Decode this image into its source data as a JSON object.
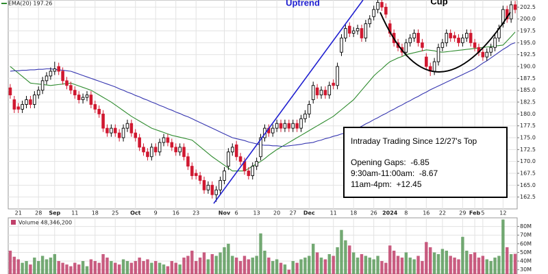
{
  "chart_data": [
    {
      "type": "candlestick",
      "categories": [
        null,
        null,
        "21",
        null,
        null,
        null,
        null,
        "28",
        null,
        null,
        null,
        "Sep",
        null,
        null,
        null,
        null,
        "11",
        null,
        null,
        null,
        null,
        "18",
        null,
        null,
        null,
        null,
        "25",
        null,
        null,
        null,
        null,
        "Oct",
        null,
        null,
        null,
        null,
        "9",
        null,
        null,
        null,
        null,
        "16",
        null,
        null,
        null,
        null,
        "23",
        null,
        null,
        null,
        null,
        null,
        null,
        "Nov",
        null,
        null,
        "6",
        null,
        null,
        null,
        null,
        "13",
        null,
        null,
        null,
        null,
        "20",
        null,
        null,
        null,
        "27",
        null,
        null,
        null,
        "Dec",
        null,
        null,
        null,
        null,
        null,
        "11",
        null,
        null,
        null,
        null,
        "18",
        null,
        null,
        null,
        null,
        "26",
        null,
        null,
        null,
        "2024",
        null,
        null,
        null,
        "8",
        null,
        null,
        null,
        null,
        "16",
        null,
        null,
        null,
        "22",
        null,
        null,
        null,
        null,
        "29",
        null,
        null,
        "Feb",
        null,
        "5",
        null,
        null,
        null,
        null,
        "12",
        null,
        null,
        null
      ],
      "open": [
        185.5,
        183,
        181.5,
        181,
        182,
        183,
        182,
        184,
        185,
        187,
        188,
        189,
        190,
        189,
        187,
        186,
        185,
        184,
        183,
        183.5,
        184,
        182,
        181,
        180,
        177,
        176,
        177,
        176,
        175,
        177,
        178,
        176,
        175,
        173,
        172,
        171,
        173,
        172,
        174,
        175,
        174,
        173,
        172,
        173,
        171,
        169,
        167.5,
        167,
        166,
        164,
        165,
        163,
        164,
        166,
        169,
        172,
        173.5,
        171,
        170,
        168,
        167,
        169,
        171,
        175,
        177,
        176,
        177,
        178,
        177,
        178,
        177,
        178,
        177,
        179,
        180,
        183,
        185.5,
        184,
        185,
        184,
        186.5,
        186,
        193,
        196,
        198.5,
        197,
        197.5,
        198,
        196,
        199,
        200.5,
        202,
        203.5,
        202.5,
        199,
        197,
        195,
        194,
        193,
        195,
        196,
        197,
        195,
        192,
        190,
        189,
        191,
        194,
        195,
        197,
        196.5,
        196,
        195,
        196,
        197,
        195,
        194,
        193,
        192,
        193,
        194,
        196,
        199,
        202,
        200,
        203
      ],
      "high": [
        186.3,
        183.8,
        182.3,
        182.8,
        183.8,
        183.8,
        184.8,
        185.8,
        187.8,
        188.8,
        189.8,
        191,
        190.8,
        189.8,
        187.8,
        186.8,
        185.8,
        184.8,
        184.3,
        184.8,
        184.8,
        182.8,
        181.8,
        180.8,
        177.8,
        177.8,
        177.8,
        176.8,
        177.8,
        178.8,
        178.8,
        176.8,
        175.8,
        173.8,
        172.8,
        173.8,
        173.8,
        174.8,
        175.8,
        175.8,
        174.8,
        173.8,
        173.8,
        173.8,
        171.8,
        169.8,
        168.3,
        167.8,
        166.8,
        165.8,
        165.8,
        164.8,
        166.8,
        168.8,
        172.8,
        173.8,
        174.3,
        171.8,
        170.8,
        168.8,
        169.8,
        170.8,
        175.8,
        177.8,
        177.8,
        177.8,
        178.8,
        178.8,
        178.8,
        178.8,
        178.8,
        178.8,
        179.8,
        180.8,
        182.8,
        186.8,
        186.3,
        185.8,
        185.8,
        186.8,
        187.3,
        190.8,
        196.8,
        198.8,
        199.3,
        198.3,
        198.8,
        198.8,
        199.8,
        200.8,
        202.8,
        204.3,
        204.3,
        203.3,
        199.8,
        197.8,
        195.8,
        194.8,
        195.8,
        196.8,
        197.8,
        197.8,
        195.8,
        192.8,
        190.8,
        191.8,
        194.8,
        195.8,
        197.8,
        197.8,
        197.3,
        196.8,
        196.8,
        197.8,
        197.8,
        195.8,
        194.8,
        193.8,
        193.8,
        194.8,
        196.8,
        198.8,
        202.8,
        202.8,
        203.8,
        203.8
      ],
      "low": [
        183.2,
        180.2,
        180.2,
        180.2,
        181.2,
        181.2,
        181.2,
        183.2,
        184.2,
        186.2,
        187.2,
        188.2,
        188.2,
        186.2,
        185.2,
        184.2,
        183.2,
        182.2,
        182.2,
        182.7,
        181.2,
        180.2,
        179.2,
        176.2,
        175.2,
        175.2,
        175.2,
        174.2,
        174.2,
        176.2,
        175.2,
        174.2,
        172.2,
        171.2,
        170.2,
        170.2,
        171.2,
        171.2,
        173.2,
        173.2,
        172.2,
        171.2,
        171.2,
        170.2,
        168.2,
        166.2,
        166.2,
        165.2,
        163.2,
        163.2,
        162.2,
        161.5,
        163.2,
        165.2,
        168.2,
        171.2,
        170.2,
        169.2,
        167.2,
        166.2,
        166.2,
        168.2,
        170.2,
        174.2,
        175.2,
        175.2,
        176.2,
        176.2,
        176.2,
        176.2,
        176.2,
        176.2,
        176.2,
        178.2,
        179.2,
        182.2,
        183.2,
        183.2,
        183.2,
        183.2,
        185.2,
        185.2,
        192.2,
        195.2,
        196.2,
        196.2,
        196.7,
        195.2,
        195.2,
        198.2,
        199.7,
        201.2,
        201.7,
        200.2,
        196.2,
        194.2,
        193.2,
        192.2,
        192.2,
        194.2,
        195.2,
        194.2,
        193.2,
        189.2,
        188,
        188.2,
        190.2,
        193.2,
        194.2,
        195.2,
        195.2,
        194.2,
        194.2,
        195.2,
        194.2,
        193.2,
        192.2,
        191.2,
        191.2,
        192.2,
        193.2,
        195.2,
        198.2,
        199.2,
        199.2,
        201.2
      ],
      "close": [
        184,
        181,
        181,
        182,
        183,
        182,
        184,
        185,
        187,
        188,
        189,
        189.5,
        189,
        187,
        186,
        185,
        184,
        183,
        183.5,
        184,
        182,
        181,
        180,
        177,
        176,
        177,
        176,
        175,
        177,
        178,
        176,
        175,
        173,
        172,
        171,
        173,
        172,
        174,
        175,
        174,
        173,
        172,
        173,
        171,
        169,
        167,
        167,
        166,
        164,
        165,
        163,
        164,
        166,
        168,
        172,
        173,
        171,
        170,
        168,
        167,
        169,
        170,
        175,
        177,
        176,
        177,
        178,
        177,
        178,
        177,
        178,
        177,
        179,
        180,
        182,
        186,
        184,
        185,
        184,
        186,
        186,
        190,
        196,
        198,
        197,
        197.5,
        198,
        196,
        199,
        200,
        202,
        203.5,
        202.5,
        201,
        197,
        195,
        194,
        193,
        195,
        196,
        197,
        195,
        194,
        190,
        189,
        191,
        194,
        195,
        197,
        196,
        196,
        195,
        196,
        197,
        195,
        194,
        193,
        192,
        193,
        194,
        196,
        198,
        202,
        200,
        203,
        202
      ],
      "up_color": "#000000",
      "down_color": "#d01830",
      "series": [
        {
          "name": "EMA(20) 197.26",
          "color": "#2e8b2e",
          "values": [
            190,
            189.3,
            188.6,
            187.9,
            187.2,
            186.5,
            186.4,
            186.3,
            186.2,
            186.1,
            186,
            186.1,
            186.2,
            186.3,
            186.4,
            186.5,
            186.2,
            185.9,
            185.6,
            185.3,
            185,
            184.5,
            184,
            183.5,
            183,
            182.5,
            181.9,
            181.3,
            180.7,
            180.1,
            179.5,
            179,
            178.5,
            178,
            177.5,
            177,
            176.7,
            176.4,
            176.1,
            175.8,
            175.5,
            175.3,
            175.1,
            174.9,
            174.7,
            174.5,
            173.8,
            173.1,
            172.4,
            171.7,
            171,
            170.4,
            169.8,
            169.2,
            168.6,
            168,
            168,
            168,
            168,
            168.5,
            169,
            169.5,
            170,
            170.6,
            171.3,
            171.9,
            172.5,
            173,
            173.5,
            174,
            174.5,
            175,
            175.5,
            176,
            176.5,
            177,
            177.5,
            178,
            178.5,
            179,
            179.5,
            180.2,
            180.9,
            181.6,
            182.3,
            183,
            184,
            185,
            186,
            187,
            188,
            188.8,
            189.5,
            190.3,
            191,
            191.4,
            191.8,
            192.1,
            192.5,
            192.7,
            192.9,
            193.1,
            193.3,
            193.5,
            193.4,
            193.3,
            193.1,
            193,
            193.1,
            193.2,
            193.3,
            193.4,
            193.5,
            193.6,
            193.7,
            193.8,
            193.9,
            194,
            194.1,
            194.2,
            194.3,
            194.4,
            194.5,
            195.4,
            196.3,
            197.26
          ]
        },
        {
          "color": "#3535b0",
          "values": [
            189,
            189.1,
            189.1,
            189.2,
            189.2,
            189.3,
            189.3,
            189.4,
            189.4,
            189.5,
            189.5,
            189.4,
            189.3,
            189.2,
            189.1,
            189,
            188.7,
            188.4,
            188.1,
            187.8,
            187.5,
            187.2,
            186.9,
            186.6,
            186.3,
            186,
            185.7,
            185.3,
            185,
            184.6,
            184.3,
            183.9,
            183.6,
            183.2,
            182.9,
            182.5,
            182.2,
            181.8,
            181.5,
            181.1,
            180.8,
            180.4,
            180.1,
            179.7,
            179.4,
            179,
            178.6,
            178.2,
            177.8,
            177.4,
            177,
            176.6,
            176.2,
            175.8,
            175.4,
            175,
            174.8,
            174.6,
            174.4,
            174.1,
            173.9,
            173.7,
            173.5,
            173.4,
            173.4,
            173.3,
            173.3,
            173.2,
            173.2,
            173.3,
            173.4,
            173.5,
            173.6,
            173.8,
            173.9,
            174,
            174.3,
            174.5,
            174.8,
            175,
            175.3,
            175.5,
            175.8,
            176,
            176.3,
            176.5,
            177,
            177.4,
            177.9,
            178.3,
            178.8,
            179.2,
            179.7,
            180.1,
            180.6,
            181,
            181.5,
            181.9,
            182.4,
            182.8,
            183.3,
            183.7,
            184.2,
            184.6,
            185.1,
            185.5,
            185.9,
            186.3,
            186.7,
            187.1,
            187.5,
            187.9,
            188.3,
            188.7,
            189.1,
            189.5,
            190.1,
            190.7,
            191.2,
            191.8,
            192.4,
            193,
            193.6,
            194.1,
            194.7,
            195
          ]
        }
      ],
      "ylim": [
        160,
        204
      ],
      "yticks": [
        162.5,
        {
          "value": 165,
          "label": "165.0"
        },
        167.5,
        {
          "value": 170,
          "label": "170.0"
        },
        172.5,
        {
          "value": 175,
          "label": "175.0"
        },
        177.5,
        {
          "value": 180,
          "label": "180.0"
        },
        182.5,
        {
          "value": 185,
          "label": "185.0"
        },
        187.5,
        {
          "value": 190,
          "label": "190.0"
        },
        192.5,
        {
          "value": 195,
          "label": "195.0"
        },
        197.5,
        {
          "value": 200,
          "label": "200.0"
        },
        202.5
      ],
      "grid": true,
      "annotations": [
        "Uptrend",
        "Cup"
      ],
      "text_box": {
        "title": "Intraday Trading Since 12/27's Top",
        "lines": [
          "Opening Gaps:  -6.85",
          "9:30am-11:00am:  -8.67",
          "11am-4pm:  +12.45"
        ]
      }
    },
    {
      "type": "bar",
      "label": "Volume 48,346,200",
      "values": [
        52000000,
        45000000,
        42000000,
        38000000,
        40000000,
        36000000,
        44000000,
        40000000,
        46000000,
        42000000,
        44000000,
        48000000,
        40000000,
        38000000,
        36000000,
        34000000,
        38000000,
        36000000,
        40000000,
        34000000,
        42000000,
        40000000,
        38000000,
        48000000,
        44000000,
        40000000,
        38000000,
        36000000,
        42000000,
        40000000,
        38000000,
        40000000,
        44000000,
        40000000,
        42000000,
        38000000,
        40000000,
        38000000,
        36000000,
        34000000,
        40000000,
        38000000,
        36000000,
        44000000,
        46000000,
        52000000,
        40000000,
        44000000,
        50000000,
        42000000,
        48000000,
        46000000,
        50000000,
        56000000,
        60000000,
        46000000,
        44000000,
        40000000,
        46000000,
        42000000,
        44000000,
        46000000,
        72000000,
        52000000,
        44000000,
        40000000,
        42000000,
        38000000,
        36000000,
        30000000,
        40000000,
        38000000,
        42000000,
        44000000,
        46000000,
        60000000,
        50000000,
        44000000,
        42000000,
        48000000,
        46000000,
        56000000,
        76000000,
        64000000,
        58000000,
        50000000,
        44000000,
        48000000,
        46000000,
        44000000,
        42000000,
        46000000,
        40000000,
        38000000,
        58000000,
        52000000,
        46000000,
        44000000,
        50000000,
        44000000,
        42000000,
        46000000,
        40000000,
        62000000,
        56000000,
        50000000,
        48000000,
        54000000,
        52000000,
        46000000,
        44000000,
        42000000,
        68000000,
        52000000,
        48000000,
        50000000,
        44000000,
        46000000,
        42000000,
        40000000,
        44000000,
        46000000,
        88000000,
        56000000,
        48000000,
        48346200
      ],
      "up_color": "#5a9a5a",
      "down_color": "#c0406a",
      "ylim": [
        25000000,
        90000000
      ],
      "yticks": [
        {
          "value": 30000000,
          "label": "30M"
        },
        {
          "value": 40000000,
          "label": "40M"
        },
        {
          "value": 50000000,
          "label": "50M"
        },
        {
          "value": 60000000,
          "label": "60M"
        },
        {
          "value": 70000000,
          "label": "70M"
        },
        {
          "value": 80000000,
          "label": "80M"
        }
      ],
      "grid": true
    }
  ]
}
